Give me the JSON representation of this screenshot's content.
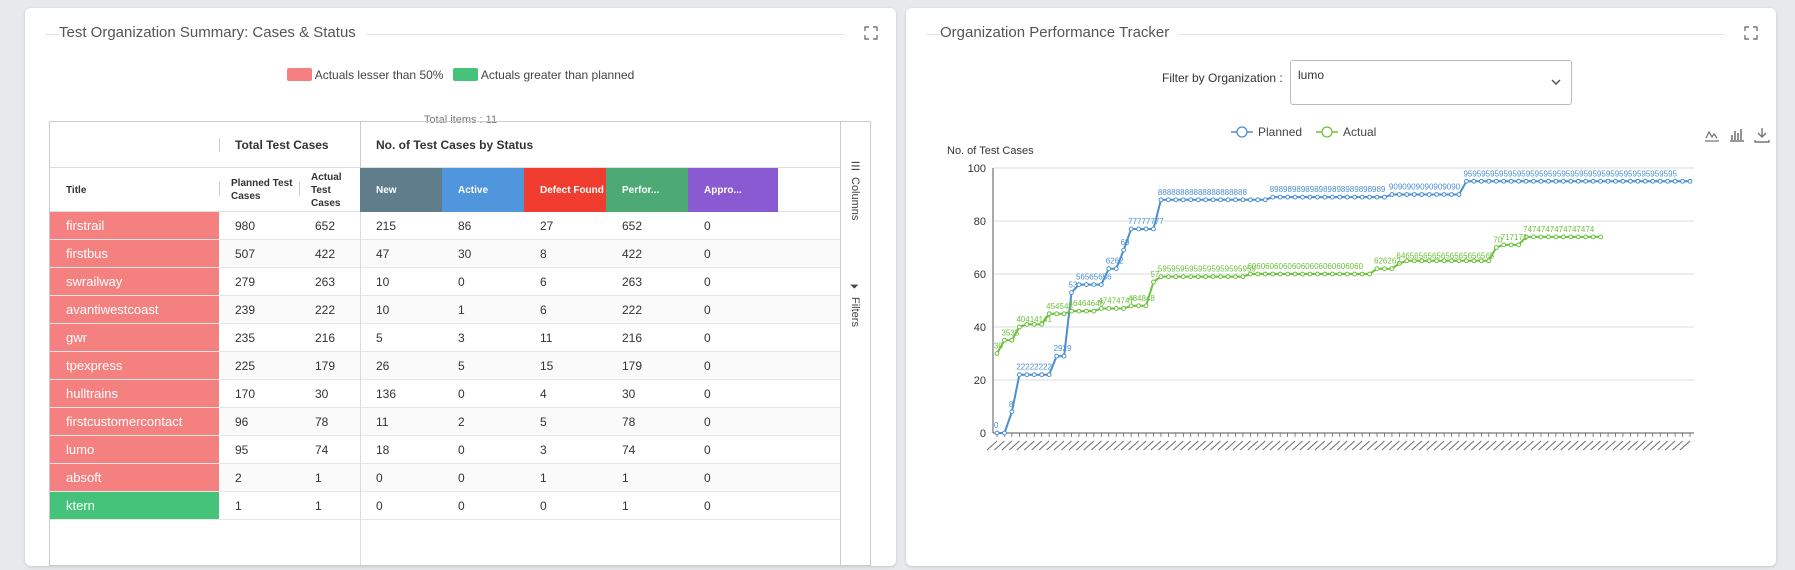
{
  "left_panel": {
    "title": "Test Organization Summary: Cases & Status",
    "legend": [
      {
        "label": "Actuals lesser than 50%",
        "color": "#f48080"
      },
      {
        "label": "Actuals greater than planned",
        "color": "#46c37b"
      }
    ],
    "total_items": "Total items : 11",
    "groups": {
      "total": "Total Test Cases",
      "status": "No. of Test Cases by Status"
    },
    "columns": [
      {
        "label": "Title"
      },
      {
        "label": "Planned Test Cases"
      },
      {
        "label": "Actual Test Cases"
      },
      {
        "label": "New",
        "color": "#607d8b"
      },
      {
        "label": "Active",
        "color": "#4f96dc"
      },
      {
        "label": "Defect Found",
        "color": "#f03d30"
      },
      {
        "label": "Perfor...",
        "color": "#4daa77"
      },
      {
        "label": "Appro...",
        "color": "#8a5ad3"
      }
    ],
    "sidebar": {
      "columns": "Columns",
      "filters": "Filters"
    },
    "rows": [
      {
        "title": "firstrail",
        "planned": "980",
        "actual": "652",
        "new": "215",
        "active": "86",
        "defect": "27",
        "perf": "652",
        "appro": "0",
        "status": "red"
      },
      {
        "title": "firstbus",
        "planned": "507",
        "actual": "422",
        "new": "47",
        "active": "30",
        "defect": "8",
        "perf": "422",
        "appro": "0",
        "status": "red"
      },
      {
        "title": "swrailway",
        "planned": "279",
        "actual": "263",
        "new": "10",
        "active": "0",
        "defect": "6",
        "perf": "263",
        "appro": "0",
        "status": "red"
      },
      {
        "title": "avantiwestcoast",
        "planned": "239",
        "actual": "222",
        "new": "10",
        "active": "1",
        "defect": "6",
        "perf": "222",
        "appro": "0",
        "status": "red"
      },
      {
        "title": "gwr",
        "planned": "235",
        "actual": "216",
        "new": "5",
        "active": "3",
        "defect": "11",
        "perf": "216",
        "appro": "0",
        "status": "red"
      },
      {
        "title": "tpexpress",
        "planned": "225",
        "actual": "179",
        "new": "26",
        "active": "5",
        "defect": "15",
        "perf": "179",
        "appro": "0",
        "status": "red"
      },
      {
        "title": "hulltrains",
        "planned": "170",
        "actual": "30",
        "new": "136",
        "active": "0",
        "defect": "4",
        "perf": "30",
        "appro": "0",
        "status": "red"
      },
      {
        "title": "firstcustomercontact",
        "planned": "96",
        "actual": "78",
        "new": "11",
        "active": "2",
        "defect": "5",
        "perf": "78",
        "appro": "0",
        "status": "red"
      },
      {
        "title": "lumo",
        "planned": "95",
        "actual": "74",
        "new": "18",
        "active": "0",
        "defect": "3",
        "perf": "74",
        "appro": "0",
        "status": "red"
      },
      {
        "title": "absoft",
        "planned": "2",
        "actual": "1",
        "new": "0",
        "active": "0",
        "defect": "1",
        "perf": "1",
        "appro": "0",
        "status": "red"
      },
      {
        "title": "ktern",
        "planned": "1",
        "actual": "1",
        "new": "0",
        "active": "0",
        "defect": "0",
        "perf": "1",
        "appro": "0",
        "status": "green"
      }
    ]
  },
  "right_panel": {
    "title": "Organization Performance Tracker",
    "filter_label": "Filter by Organization :",
    "selected_org": "lumo",
    "tools": [
      "line-chart-icon",
      "bar-chart-icon",
      "download-icon"
    ]
  },
  "chart_data": {
    "type": "line",
    "ylabel": "No. of Test Cases",
    "ylim": [
      0,
      100
    ],
    "yticks": [
      "0",
      "20",
      "40",
      "60",
      "80",
      "100"
    ],
    "grid": true,
    "legend_position": "top",
    "series": [
      {
        "name": "Planned",
        "color": "#4a8fd0",
        "values": [
          0,
          0,
          8,
          22,
          22,
          22,
          22,
          22,
          29,
          29,
          53,
          56,
          56,
          56,
          56,
          62,
          62,
          69,
          77,
          77,
          77,
          77,
          88,
          88,
          88,
          88,
          88,
          88,
          88,
          88,
          88,
          88,
          88,
          88,
          88,
          88,
          88,
          89,
          89,
          89,
          89,
          89,
          89,
          89,
          89,
          89,
          89,
          89,
          89,
          89,
          89,
          89,
          89,
          90,
          90,
          90,
          90,
          90,
          90,
          90,
          90,
          90,
          90,
          95,
          95,
          95,
          95,
          95,
          95,
          95,
          95,
          95,
          95,
          95,
          95,
          95,
          95,
          95,
          95,
          95,
          95,
          95,
          95,
          95,
          95,
          95,
          95,
          95,
          95,
          95,
          95,
          95,
          95,
          95
        ]
      },
      {
        "name": "Actual",
        "color": "#6cc03c",
        "values": [
          30,
          35,
          35,
          40,
          41,
          41,
          41,
          45,
          45,
          45,
          46,
          46,
          46,
          46,
          47,
          47,
          47,
          47,
          48,
          48,
          48,
          57,
          59,
          59,
          59,
          59,
          59,
          59,
          59,
          59,
          59,
          59,
          59,
          59,
          60,
          60,
          60,
          60,
          60,
          60,
          60,
          60,
          60,
          60,
          60,
          60,
          60,
          60,
          60,
          60,
          60,
          62,
          62,
          62,
          64,
          65,
          65,
          65,
          65,
          65,
          65,
          65,
          65,
          65,
          65,
          65,
          65,
          70,
          71,
          71,
          71,
          74,
          74,
          74,
          74,
          74,
          74,
          74,
          74,
          74,
          74,
          74
        ]
      }
    ],
    "point_labels": [
      {
        "series": "Planned",
        "text": "0",
        "index": 0
      },
      {
        "series": "Planned",
        "text": "8",
        "index": 2
      },
      {
        "series": "Planned",
        "text": "22222222",
        "index": 3
      },
      {
        "series": "Planned",
        "text": "2929",
        "index": 8
      },
      {
        "series": "Planned",
        "text": "53",
        "index": 10
      },
      {
        "series": "Planned",
        "text": "56565656",
        "index": 11
      },
      {
        "series": "Planned",
        "text": "6262",
        "index": 15
      },
      {
        "series": "Planned",
        "text": "69",
        "index": 17
      },
      {
        "series": "Planned",
        "text": "77777777",
        "index": 18
      },
      {
        "series": "Planned",
        "text": "88888888888888888888",
        "index": 22
      },
      {
        "series": "Planned",
        "text": "89898989898989898989898989",
        "index": 37
      },
      {
        "series": "Planned",
        "text": "9090909090909090",
        "index": 53
      },
      {
        "series": "Planned",
        "text": "959595959595959595959595959595959595959595959595",
        "index": 63
      },
      {
        "series": "Actual",
        "text": "30",
        "index": 0
      },
      {
        "series": "Actual",
        "text": "3535",
        "index": 1
      },
      {
        "series": "Actual",
        "text": "40414141",
        "index": 3
      },
      {
        "series": "Actual",
        "text": "454545",
        "index": 7
      },
      {
        "series": "Actual",
        "text": "46464646",
        "index": 10
      },
      {
        "series": "Actual",
        "text": "47474747",
        "index": 14
      },
      {
        "series": "Actual",
        "text": "484848",
        "index": 18
      },
      {
        "series": "Actual",
        "text": "57",
        "index": 21
      },
      {
        "series": "Actual",
        "text": "5959595959595959595959",
        "index": 22
      },
      {
        "series": "Actual",
        "text": "60606060606060606060606060",
        "index": 34
      },
      {
        "series": "Actual",
        "text": "626262",
        "index": 51
      },
      {
        "series": "Actual",
        "text": "6465656565656565656565",
        "index": 54
      },
      {
        "series": "Actual",
        "text": "70",
        "index": 67
      },
      {
        "series": "Actual",
        "text": "717171",
        "index": 68
      },
      {
        "series": "Actual",
        "text": "7474747474747474",
        "index": 71
      }
    ]
  }
}
